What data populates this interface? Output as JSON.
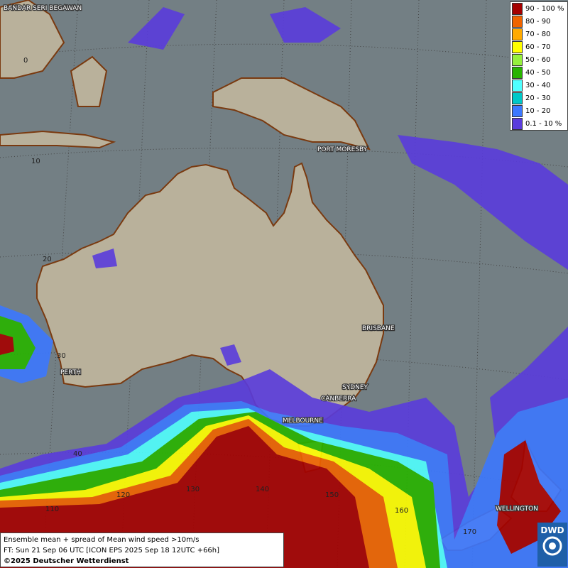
{
  "map": {
    "cities": [
      "BANDAR SERI BEGAWAN",
      "PORT MORESBY",
      "BRISBANE",
      "SYDNEY",
      "CANBERRA",
      "MELBOURNE",
      "PERTH",
      "WELLINGTON"
    ],
    "lat_labels": [
      "0",
      "10",
      "20",
      "30",
      "40"
    ],
    "lon_labels": [
      "110",
      "120",
      "130",
      "140",
      "150",
      "160",
      "170"
    ]
  },
  "legend": {
    "items": [
      {
        "label": "90 - 100 %",
        "color": "#a50000"
      },
      {
        "label": "80 - 90",
        "color": "#f06400"
      },
      {
        "label": "70 - 80",
        "color": "#ffaa00"
      },
      {
        "label": "60 - 70",
        "color": "#ffff00"
      },
      {
        "label": "50 - 60",
        "color": "#96f03c"
      },
      {
        "label": "40 - 50",
        "color": "#28b400"
      },
      {
        "label": "30 - 40",
        "color": "#50ffff"
      },
      {
        "label": "20 - 30",
        "color": "#00c8c8"
      },
      {
        "label": "10 - 20",
        "color": "#3c78ff"
      },
      {
        "label": "0.1 - 10 %",
        "color": "#5a3cdc"
      }
    ]
  },
  "footer": {
    "lines": [
      "Ensemble mean + spread of Mean wind speed >10m/s",
      "FT: Sun 21 Sep 06 UTC [ICON EPS 2025 Sep 18 12UTC +66h]"
    ],
    "copyright": "©2025 Deutscher Wetterdienst"
  },
  "logo": "DWD"
}
